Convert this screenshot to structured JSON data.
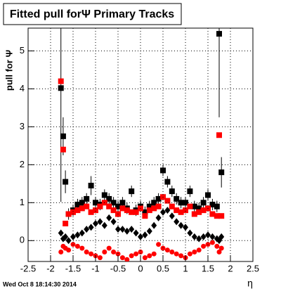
{
  "chart_data": {
    "type": "scatter",
    "title": "Fitted pull forΨ   Primary Tracks",
    "y_label": "pull for Ψ",
    "x_label": "η",
    "footer": "Wed Oct  8 18:14:30 2014",
    "xlim": [
      -2.5,
      2.5
    ],
    "ylim": [
      -0.55,
      5.6
    ],
    "xticks": [
      -2.5,
      -2,
      -1.5,
      -1,
      -0.5,
      0,
      0.5,
      1,
      1.5,
      2,
      2.5
    ],
    "yticks": [
      0,
      1,
      2,
      3,
      4,
      5
    ],
    "grid": true,
    "x": [
      -1.77,
      -1.72,
      -1.67,
      -1.6,
      -1.5,
      -1.4,
      -1.3,
      -1.2,
      -1.1,
      -1.0,
      -0.9,
      -0.8,
      -0.7,
      -0.6,
      -0.5,
      -0.4,
      -0.3,
      -0.2,
      -0.1,
      0,
      0.1,
      0.2,
      0.3,
      0.4,
      0.5,
      0.6,
      0.7,
      0.8,
      0.9,
      1.0,
      1.1,
      1.2,
      1.3,
      1.4,
      1.5,
      1.6,
      1.7,
      1.75,
      1.8
    ],
    "series": [
      {
        "color": "#000000",
        "marker": "square",
        "values": [
          4.02,
          2.75,
          1.55,
          0.7,
          0.8,
          0.95,
          1.0,
          1.1,
          1.45,
          1.0,
          0.95,
          1.2,
          1.1,
          1.0,
          0.9,
          1.0,
          0.85,
          1.3,
          0.8,
          0.9,
          0.75,
          0.9,
          1.0,
          1.1,
          1.85,
          1.55,
          1.3,
          1.1,
          1.0,
          1.0,
          1.3,
          0.9,
          0.85,
          1.0,
          1.2,
          0.95,
          0.9,
          5.45,
          1.8
        ],
        "errors": [
          3.0,
          0.5,
          0.3,
          0.15,
          0.15,
          0.15,
          0.15,
          0.15,
          0.25,
          0.15,
          0.15,
          0.15,
          0.15,
          0.15,
          0.15,
          0.15,
          0.15,
          0.15,
          0.15,
          0.15,
          0.15,
          0.15,
          0.15,
          0.15,
          0.15,
          0.15,
          0.15,
          0.15,
          0.15,
          0.15,
          0.15,
          0.15,
          0.15,
          0.15,
          0.15,
          0.15,
          0.15,
          2.2,
          0.4
        ]
      },
      {
        "color": "#ff0000",
        "marker": "square",
        "values": [
          4.2,
          2.4,
          0.45,
          0.7,
          0.75,
          0.8,
          0.85,
          0.9,
          0.75,
          0.8,
          0.9,
          1.0,
          0.9,
          0.8,
          0.7,
          0.85,
          0.8,
          0.75,
          0.75,
          0.85,
          0.65,
          0.8,
          0.85,
          0.9,
          1.15,
          1.05,
          0.9,
          0.8,
          0.75,
          0.8,
          0.9,
          0.7,
          0.75,
          0.8,
          0.85,
          0.7,
          0.65,
          2.78,
          0.65
        ]
      },
      {
        "color": "#000000",
        "marker": "diamond",
        "values": [
          0.2,
          0.05,
          0.1,
          0.0,
          0.1,
          0.15,
          0.2,
          0.3,
          0.35,
          0.45,
          0.5,
          0.4,
          0.6,
          0.5,
          0.3,
          0.3,
          0.25,
          0.3,
          0.2,
          0.1,
          0.15,
          0.25,
          0.4,
          0.6,
          0.75,
          0.8,
          0.65,
          0.5,
          0.4,
          0.35,
          0.2,
          0.1,
          0.05,
          0.1,
          0.15,
          0.1,
          0.05,
          0.0,
          0.1
        ]
      },
      {
        "color": "#ff0000",
        "marker": "circle",
        "values": [
          -0.3,
          -0.15,
          -0.2,
          -0.25,
          -0.1,
          -0.15,
          -0.2,
          -0.3,
          -0.35,
          -0.4,
          -0.45,
          -0.3,
          -0.2,
          -0.3,
          -0.35,
          -0.45,
          -0.5,
          -0.4,
          -0.35,
          -0.3,
          -0.45,
          -0.4,
          -0.35,
          -0.1,
          -0.2,
          -0.25,
          -0.3,
          -0.35,
          -0.4,
          -0.45,
          -0.35,
          -0.3,
          -0.25,
          -0.15,
          -0.1,
          -0.05,
          -0.15,
          -0.3,
          -0.2
        ]
      }
    ]
  }
}
